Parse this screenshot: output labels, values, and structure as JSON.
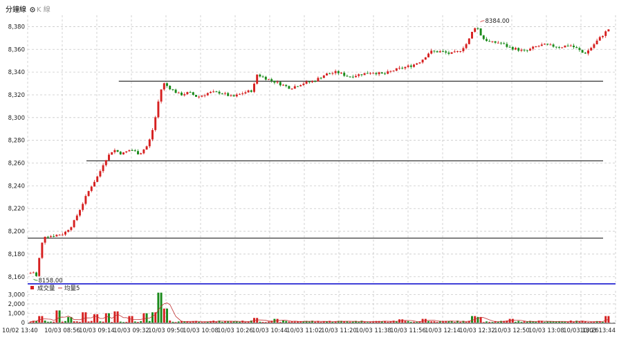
{
  "header": {
    "tab_active": "分鐘線",
    "tab_inactive": "K 線",
    "tab_icon": "radio-icon"
  },
  "volume_legend": {
    "item1": "成交量",
    "item2": "均量5"
  },
  "colors": {
    "up": "#d62020",
    "down": "#1a8a1a",
    "grid": "#c8c8c8",
    "separator": "#0000cc",
    "support_line": "#000000",
    "high_label": "#d62020",
    "low_label": "#1a8a1a",
    "volume_avg": "#c03030"
  },
  "chart_data": [
    {
      "type": "candlestick",
      "title": "",
      "ylim": [
        8155,
        8390
      ],
      "yticks": [
        8160,
        8180,
        8200,
        8220,
        8240,
        8260,
        8280,
        8300,
        8320,
        8340,
        8360,
        8380
      ],
      "ytick_labels": [
        "8,160",
        "8,180",
        "8,200",
        "8,220",
        "8,240",
        "8,260",
        "8,280",
        "8,300",
        "8,320",
        "8,340",
        "8,360",
        "8,380"
      ],
      "xticks": [
        "10/02 13:40",
        "10/03 08:56",
        "10/03 09:14",
        "10/03 09:32",
        "10/03 09:50",
        "10/03 10:08",
        "10/03 10:26",
        "10/03 10:44",
        "10/03 11:02",
        "10/03 11:20",
        "10/03 11:38",
        "10/03 11:56",
        "10/03 12:14",
        "10/03 12:32",
        "10/03 12:50",
        "10/03 13:08",
        "10/03 13:26",
        "10/03 13:44"
      ],
      "annotations": [
        {
          "text": "8384.00",
          "price": 8384,
          "kind": "high"
        },
        {
          "text": "8158.00",
          "price": 8158,
          "kind": "low"
        }
      ],
      "horizontal_lines": [
        {
          "price": 8332,
          "from_fraction": 0.155
        },
        {
          "price": 8262,
          "from_fraction": 0.1
        },
        {
          "price": 8194,
          "from_fraction": 0.0
        }
      ],
      "close_path": [
        [
          0,
          8163
        ],
        [
          0.008,
          8164
        ],
        [
          0.013,
          8160
        ],
        [
          0.018,
          8178
        ],
        [
          0.025,
          8196
        ],
        [
          0.04,
          8196
        ],
        [
          0.06,
          8198
        ],
        [
          0.075,
          8206
        ],
        [
          0.09,
          8222
        ],
        [
          0.105,
          8238
        ],
        [
          0.12,
          8250
        ],
        [
          0.13,
          8262
        ],
        [
          0.145,
          8272
        ],
        [
          0.16,
          8268
        ],
        [
          0.175,
          8272
        ],
        [
          0.19,
          8268
        ],
        [
          0.205,
          8276
        ],
        [
          0.213,
          8290
        ],
        [
          0.22,
          8306
        ],
        [
          0.225,
          8322
        ],
        [
          0.232,
          8330
        ],
        [
          0.245,
          8325
        ],
        [
          0.26,
          8320
        ],
        [
          0.275,
          8322
        ],
        [
          0.29,
          8318
        ],
        [
          0.31,
          8322
        ],
        [
          0.33,
          8322
        ],
        [
          0.35,
          8318
        ],
        [
          0.37,
          8322
        ],
        [
          0.385,
          8324
        ],
        [
          0.392,
          8338
        ],
        [
          0.41,
          8334
        ],
        [
          0.43,
          8330
        ],
        [
          0.45,
          8326
        ],
        [
          0.47,
          8330
        ],
        [
          0.49,
          8332
        ],
        [
          0.51,
          8338
        ],
        [
          0.53,
          8340
        ],
        [
          0.55,
          8336
        ],
        [
          0.57,
          8338
        ],
        [
          0.59,
          8340
        ],
        [
          0.61,
          8338
        ],
        [
          0.63,
          8342
        ],
        [
          0.645,
          8344
        ],
        [
          0.66,
          8346
        ],
        [
          0.675,
          8350
        ],
        [
          0.69,
          8358
        ],
        [
          0.71,
          8358
        ],
        [
          0.725,
          8356
        ],
        [
          0.74,
          8358
        ],
        [
          0.755,
          8366
        ],
        [
          0.765,
          8378
        ],
        [
          0.77,
          8381
        ],
        [
          0.78,
          8370
        ],
        [
          0.795,
          8366
        ],
        [
          0.81,
          8366
        ],
        [
          0.825,
          8362
        ],
        [
          0.84,
          8360
        ],
        [
          0.855,
          8358
        ],
        [
          0.87,
          8362
        ],
        [
          0.885,
          8364
        ],
        [
          0.9,
          8363
        ],
        [
          0.915,
          8362
        ],
        [
          0.93,
          8364
        ],
        [
          0.945,
          8360
        ],
        [
          0.955,
          8356
        ],
        [
          0.965,
          8360
        ],
        [
          0.975,
          8366
        ],
        [
          0.99,
          8374
        ],
        [
          1.0,
          8379
        ]
      ]
    },
    {
      "type": "bar",
      "title": "",
      "series": [
        {
          "name": "成交量"
        },
        {
          "name": "均量5"
        }
      ],
      "ylim": [
        0,
        3400
      ],
      "yticks": [
        0,
        1000,
        2000,
        3000
      ],
      "ytick_labels": [
        "0",
        "1,000",
        "2,000",
        "3,000"
      ],
      "spikes": [
        [
          0.02,
          700
        ],
        [
          0.05,
          1300
        ],
        [
          0.07,
          600
        ],
        [
          0.095,
          1100
        ],
        [
          0.115,
          900
        ],
        [
          0.135,
          1000
        ],
        [
          0.15,
          1200
        ],
        [
          0.175,
          700
        ],
        [
          0.2,
          1000
        ],
        [
          0.215,
          1100
        ],
        [
          0.225,
          3200
        ],
        [
          0.235,
          1500
        ],
        [
          0.39,
          500
        ],
        [
          0.425,
          400
        ],
        [
          0.64,
          350
        ],
        [
          0.68,
          400
        ],
        [
          0.765,
          700
        ],
        [
          0.775,
          600
        ],
        [
          0.83,
          400
        ],
        [
          0.995,
          700
        ]
      ]
    }
  ]
}
